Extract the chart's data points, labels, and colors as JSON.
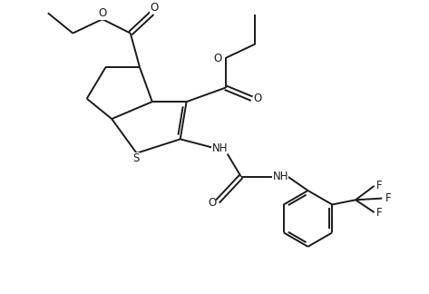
{
  "bg_color": "#ffffff",
  "line_color": "#1a1a1a",
  "line_width": 1.4,
  "font_size": 8.5,
  "figsize": [
    4.73,
    3.24
  ],
  "dpi": 100,
  "xlim": [
    -3.5,
    7.5
  ],
  "ylim": [
    -5.5,
    3.8
  ]
}
